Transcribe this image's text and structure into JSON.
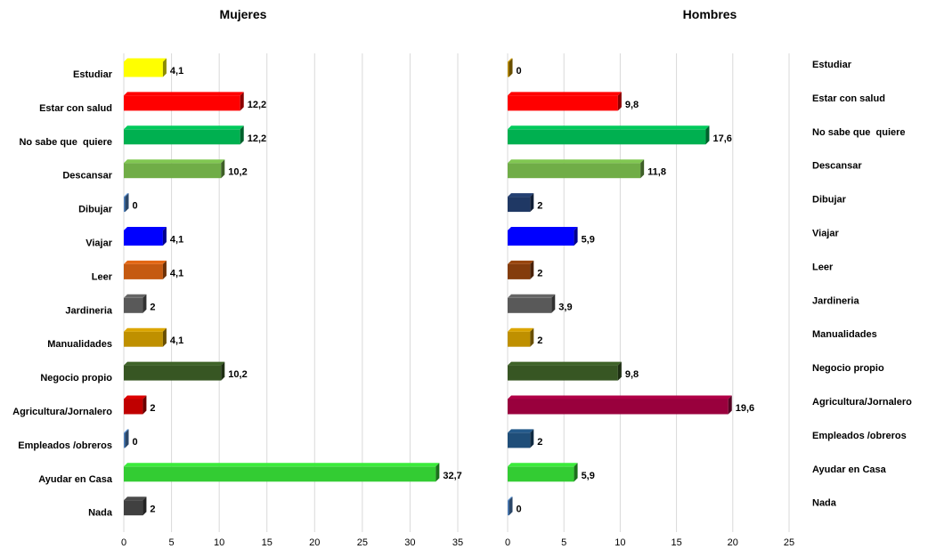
{
  "chart_data": [
    {
      "type": "bar",
      "orientation": "horizontal",
      "title": "Mujeres",
      "categories": [
        "Estudiar",
        "Estar con salud",
        "No sabe que  quiere",
        "Descansar",
        "Dibujar",
        "Viajar",
        "Leer",
        "Jardineria",
        "Manualidades",
        "Negocio propio",
        "Agricultura/Jornalero",
        "Empleados /obreros",
        "Ayudar en Casa",
        "Nada"
      ],
      "values": [
        4.1,
        12.2,
        12.2,
        10.2,
        0,
        4.1,
        4.1,
        2,
        4.1,
        10.2,
        2,
        0,
        32.7,
        2
      ],
      "value_labels": [
        "4,1",
        "12,2",
        "12,2",
        "10,2",
        "0",
        "4,1",
        "4,1",
        "2",
        "4,1",
        "10,2",
        "2",
        "0",
        "32,7",
        "2"
      ],
      "bar_colors": [
        "#ffff00",
        "#ff0000",
        "#00b050",
        "#70ad47",
        "#4f81bd",
        "#0000ff",
        "#c55a11",
        "#595959",
        "#bf9000",
        "#375623",
        "#c00000",
        "#4f81bd",
        "#33cc33",
        "#404040"
      ],
      "xlim": [
        0,
        35
      ],
      "xticks": [
        "0",
        "5",
        "10",
        "15",
        "20",
        "25",
        "30",
        "35"
      ],
      "category_labels_side": "left",
      "grid": true
    },
    {
      "type": "bar",
      "orientation": "horizontal",
      "title": "Hombres",
      "categories": [
        "Estudiar",
        "Estar con salud",
        "No sabe que  quiere",
        "Descansar",
        "Dibujar",
        "Viajar",
        "Leer",
        "Jardineria",
        "Manualidades",
        "Negocio propio",
        "Agricultura/Jornalero",
        "Empleados /obreros",
        "Ayudar en Casa",
        "Nada"
      ],
      "values": [
        0,
        9.8,
        17.6,
        11.8,
        2,
        5.9,
        2,
        3.9,
        2,
        9.8,
        19.6,
        2,
        5.9,
        0
      ],
      "value_labels": [
        "0",
        "9,8",
        "17,6",
        "11,8",
        "2",
        "5,9",
        "2",
        "3,9",
        "2",
        "9,8",
        "19,6",
        "2",
        "5,9",
        "0"
      ],
      "bar_colors": [
        "#bf9000",
        "#ff0000",
        "#00b050",
        "#70ad47",
        "#1f3864",
        "#0000ff",
        "#843c0c",
        "#595959",
        "#bf9000",
        "#375623",
        "#99003d",
        "#1f4e79",
        "#33cc33",
        "#4f81bd"
      ],
      "xlim": [
        0,
        25
      ],
      "xticks": [
        "0",
        "5",
        "10",
        "15",
        "20",
        "25"
      ],
      "category_labels_side": "right",
      "grid": true
    }
  ]
}
